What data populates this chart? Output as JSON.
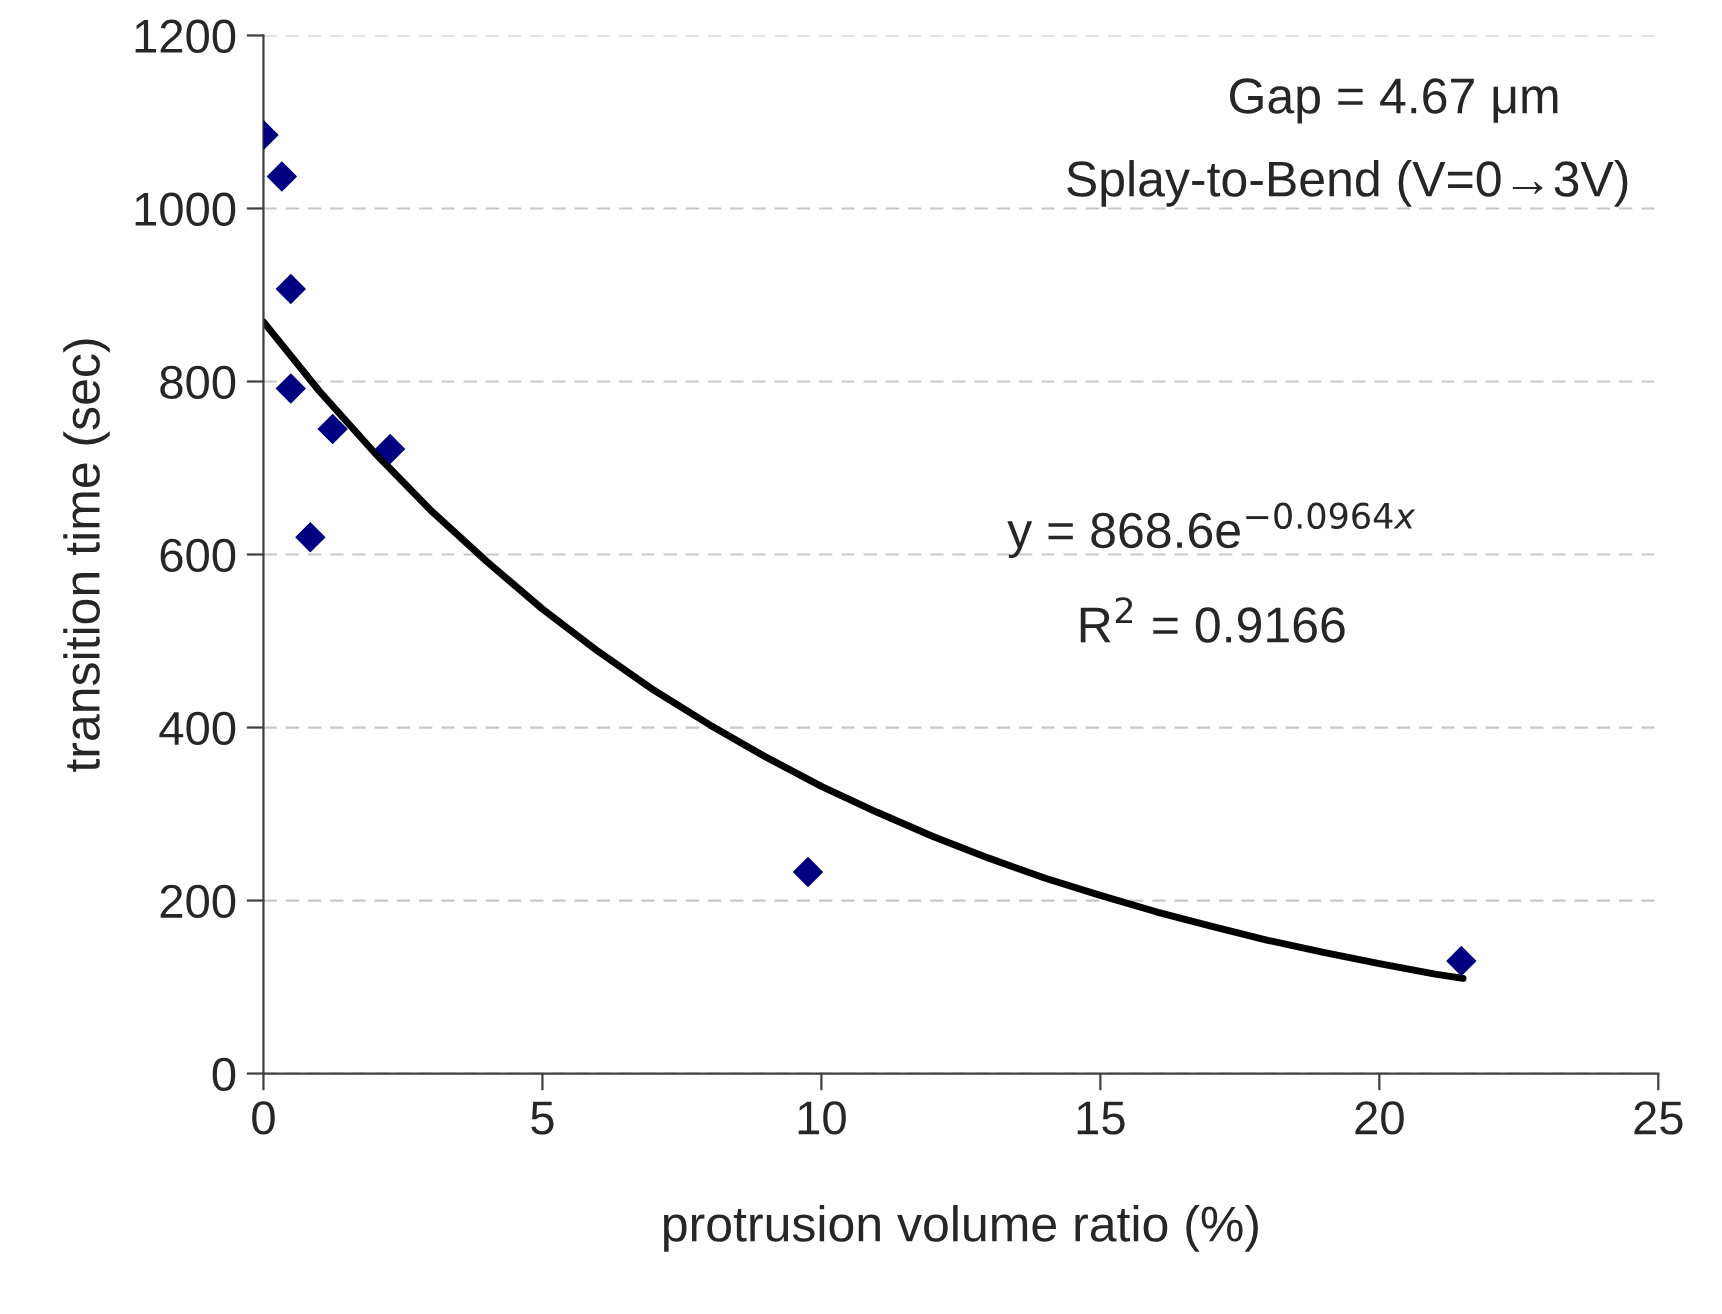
{
  "chart_data": {
    "type": "scatter",
    "xlabel": "protrusion volume ratio (%)",
    "ylabel": "transition time (sec)",
    "xlim": [
      0,
      25
    ],
    "xticks": [
      0,
      5,
      10,
      15,
      20,
      25
    ],
    "ylim": [
      0,
      1200
    ],
    "yticks": [
      0,
      200,
      400,
      600,
      800,
      1000,
      1200
    ],
    "grid": "y",
    "legend": false,
    "series": [
      {
        "marker": "diamond",
        "color": "#000080",
        "x": [
          0,
          0.33,
          0.49,
          0.49,
          0.84,
          1.24,
          2.27,
          9.76,
          21.47
        ],
        "values": [
          1085,
          1037,
          907,
          792,
          620,
          745,
          722,
          233,
          130
        ]
      },
      {
        "type": "line",
        "marker": "none",
        "color": "#000000",
        "x": [
          0,
          1,
          2,
          3,
          4,
          5,
          6,
          7,
          8,
          9,
          10,
          11,
          12,
          13,
          14,
          15,
          16,
          17,
          18,
          19,
          20,
          21,
          21.5
        ],
        "values": [
          869,
          789,
          717,
          651,
          592,
          537,
          488,
          443,
          403,
          366,
          332,
          302,
          274,
          249,
          226,
          206,
          187,
          170,
          154,
          140,
          127,
          115,
          110
        ]
      }
    ],
    "annotations": [
      "Gap = 4.67 μm",
      "Splay-to-Bend (V=0→3V)",
      "y = 868.6e$^{−0.0964x}$",
      "R$^{2}$ = 0.9166"
    ]
  }
}
